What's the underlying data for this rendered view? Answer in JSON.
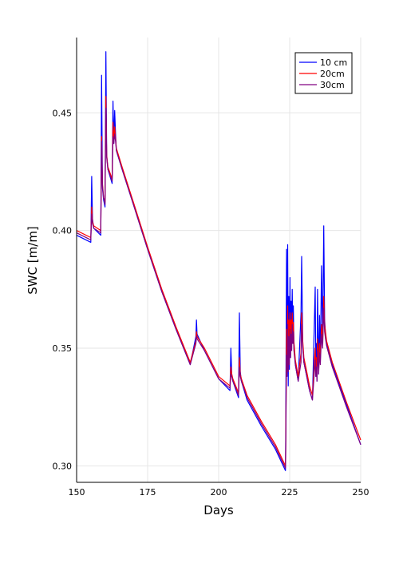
{
  "chart_data": {
    "type": "line",
    "title": "",
    "xlabel": "Days",
    "ylabel": "SWC [m/m]",
    "xlim": [
      150,
      250
    ],
    "ylim": [
      0.293,
      0.482
    ],
    "xticks": [
      150,
      175,
      200,
      225,
      250
    ],
    "xtick_labels": [
      "150",
      "175",
      "200",
      "225",
      "250"
    ],
    "yticks": [
      0.3,
      0.35,
      0.4,
      0.45
    ],
    "ytick_labels": [
      "0.30",
      "0.35",
      "0.40",
      "0.45"
    ],
    "grid": true,
    "legend_position": "top-right",
    "series": [
      {
        "name": "10 cm",
        "color": "#0000ff",
        "x": [
          150,
          155,
          155.3,
          155.6,
          156,
          158.5,
          158.8,
          159.1,
          159.5,
          160,
          160.3,
          160.6,
          161,
          162.5,
          162.8,
          163.1,
          163.4,
          163.7,
          164,
          166,
          170,
          175,
          180,
          185,
          190,
          192,
          192.2,
          192.4,
          195,
          200,
          204,
          204.3,
          204.6,
          205,
          207,
          207.3,
          207.6,
          208,
          210,
          215,
          220,
          223.5,
          223.6,
          223.9,
          224.1,
          224.3,
          224.5,
          224.7,
          224.9,
          225.1,
          225.3,
          225.5,
          225.7,
          225.9,
          226.1,
          226.3,
          226.5,
          227,
          228,
          229,
          229.2,
          229.6,
          230,
          231,
          232,
          233,
          234,
          234.2,
          234.4,
          234.6,
          234.8,
          235.2,
          235.5,
          235.8,
          236.2,
          236.6,
          237,
          237.3,
          237.6,
          238,
          240,
          245,
          250
        ],
        "y": [
          0.398,
          0.395,
          0.423,
          0.405,
          0.401,
          0.398,
          0.466,
          0.418,
          0.413,
          0.41,
          0.476,
          0.432,
          0.426,
          0.42,
          0.455,
          0.437,
          0.451,
          0.441,
          0.434,
          0.426,
          0.411,
          0.392,
          0.374,
          0.358,
          0.343,
          0.355,
          0.362,
          0.356,
          0.349,
          0.337,
          0.332,
          0.35,
          0.339,
          0.336,
          0.329,
          0.365,
          0.34,
          0.336,
          0.328,
          0.317,
          0.307,
          0.298,
          0.311,
          0.392,
          0.341,
          0.394,
          0.334,
          0.372,
          0.341,
          0.38,
          0.346,
          0.37,
          0.353,
          0.375,
          0.356,
          0.368,
          0.352,
          0.343,
          0.336,
          0.365,
          0.389,
          0.351,
          0.344,
          0.338,
          0.332,
          0.328,
          0.376,
          0.338,
          0.352,
          0.336,
          0.375,
          0.339,
          0.364,
          0.344,
          0.385,
          0.352,
          0.402,
          0.362,
          0.356,
          0.352,
          0.343,
          0.326,
          0.309
        ]
      },
      {
        "name": "20cm",
        "color": "#ff0000",
        "x": [
          150,
          155,
          155.3,
          155.6,
          156,
          158.5,
          158.8,
          159.1,
          159.5,
          160,
          160.3,
          160.6,
          161,
          162.5,
          162.8,
          163.1,
          163.4,
          163.7,
          164,
          166,
          170,
          175,
          180,
          185,
          190,
          192,
          192.2,
          192.4,
          195,
          200,
          204,
          204.3,
          204.6,
          205,
          207,
          207.3,
          207.6,
          208,
          210,
          215,
          220,
          223.5,
          223.6,
          223.9,
          224.1,
          224.3,
          224.5,
          224.7,
          224.9,
          225.1,
          225.3,
          225.5,
          225.7,
          225.9,
          226.1,
          226.3,
          226.5,
          227,
          228,
          229,
          229.2,
          229.6,
          230,
          231,
          232,
          233,
          234,
          234.2,
          234.4,
          234.6,
          234.8,
          235.2,
          235.5,
          235.8,
          236.2,
          236.6,
          237,
          237.3,
          237.6,
          238,
          240,
          245,
          250
        ],
        "y": [
          0.4,
          0.397,
          0.41,
          0.404,
          0.402,
          0.4,
          0.44,
          0.42,
          0.414,
          0.412,
          0.457,
          0.432,
          0.427,
          0.422,
          0.446,
          0.438,
          0.444,
          0.439,
          0.435,
          0.427,
          0.412,
          0.393,
          0.375,
          0.359,
          0.344,
          0.353,
          0.357,
          0.355,
          0.35,
          0.338,
          0.334,
          0.342,
          0.339,
          0.337,
          0.331,
          0.346,
          0.339,
          0.337,
          0.33,
          0.319,
          0.309,
          0.3,
          0.306,
          0.358,
          0.345,
          0.368,
          0.347,
          0.362,
          0.349,
          0.365,
          0.351,
          0.362,
          0.354,
          0.365,
          0.356,
          0.361,
          0.353,
          0.345,
          0.338,
          0.348,
          0.365,
          0.353,
          0.346,
          0.34,
          0.334,
          0.33,
          0.35,
          0.341,
          0.346,
          0.339,
          0.354,
          0.342,
          0.352,
          0.346,
          0.36,
          0.353,
          0.372,
          0.36,
          0.357,
          0.353,
          0.344,
          0.327,
          0.311
        ]
      },
      {
        "name": "30cm",
        "color": "#800080",
        "x": [
          150,
          155,
          155.3,
          155.6,
          156,
          158.5,
          158.8,
          159.1,
          159.5,
          160,
          160.3,
          160.6,
          161,
          162.5,
          162.8,
          163.1,
          163.4,
          163.7,
          164,
          166,
          170,
          175,
          180,
          185,
          190,
          192,
          192.2,
          192.4,
          195,
          200,
          204,
          204.3,
          204.6,
          205,
          207,
          207.3,
          207.6,
          208,
          210,
          215,
          220,
          223.5,
          223.6,
          223.9,
          224.1,
          224.3,
          224.5,
          224.7,
          224.9,
          225.1,
          225.3,
          225.5,
          225.7,
          225.9,
          226.1,
          226.3,
          226.5,
          227,
          228,
          229,
          229.2,
          229.6,
          230,
          231,
          232,
          233,
          234,
          234.2,
          234.4,
          234.6,
          234.8,
          235.2,
          235.5,
          235.8,
          236.2,
          236.6,
          237,
          237.3,
          237.6,
          238,
          240,
          245,
          250
        ],
        "y": [
          0.399,
          0.396,
          0.407,
          0.403,
          0.401,
          0.399,
          0.438,
          0.419,
          0.414,
          0.411,
          0.452,
          0.431,
          0.426,
          0.421,
          0.44,
          0.437,
          0.441,
          0.438,
          0.434,
          0.426,
          0.411,
          0.392,
          0.374,
          0.358,
          0.343,
          0.352,
          0.355,
          0.354,
          0.349,
          0.337,
          0.333,
          0.339,
          0.338,
          0.336,
          0.33,
          0.342,
          0.338,
          0.336,
          0.329,
          0.318,
          0.308,
          0.299,
          0.304,
          0.347,
          0.338,
          0.36,
          0.34,
          0.355,
          0.343,
          0.358,
          0.346,
          0.356,
          0.349,
          0.36,
          0.352,
          0.357,
          0.349,
          0.343,
          0.336,
          0.344,
          0.36,
          0.35,
          0.344,
          0.338,
          0.332,
          0.328,
          0.345,
          0.338,
          0.342,
          0.336,
          0.349,
          0.339,
          0.348,
          0.343,
          0.356,
          0.35,
          0.367,
          0.357,
          0.354,
          0.351,
          0.342,
          0.325,
          0.309
        ]
      }
    ]
  }
}
